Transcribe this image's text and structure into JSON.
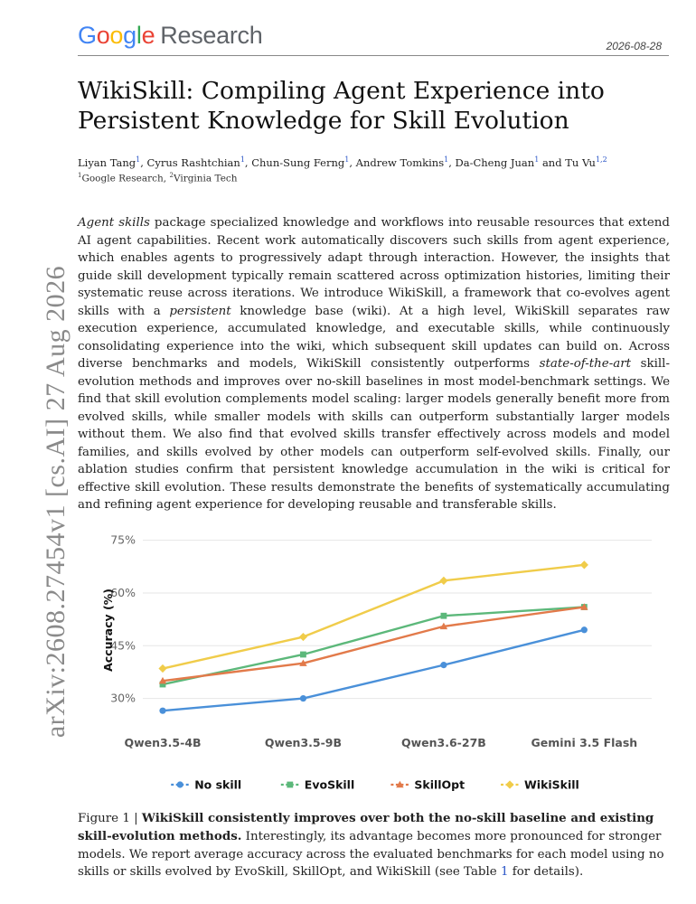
{
  "header": {
    "logo": {
      "brand": "Google",
      "product": "Research"
    },
    "date": "2026-08-28"
  },
  "paper": {
    "title": "WikiSkill: Compiling Agent Experience into Persistent Knowledge for Skill Evolution",
    "authors": [
      {
        "name": "Liyan Tang",
        "sup": "1"
      },
      {
        "name": "Cyrus Rashtchian",
        "sup": "1"
      },
      {
        "name": "Chun-Sung Ferng",
        "sup": "1"
      },
      {
        "name": "Andrew Tomkins",
        "sup": "1"
      },
      {
        "name": "Da-Cheng Juan",
        "sup": "1"
      },
      {
        "name": "Tu Vu",
        "sup": "1,2"
      }
    ],
    "affiliations": [
      {
        "sup": "1",
        "name": "Google Research"
      },
      {
        "sup": "2",
        "name": "Virginia Tech"
      }
    ],
    "abstract": {
      "lead_italic": "Agent skills",
      "part1": " package specialized knowledge and workflows into reusable resources that extend AI agent capabilities.  Recent work automatically discovers such skills from agent experience, which enables agents to progressively adapt through interaction. However, the insights that guide skill development typically remain scattered across optimization histories, limiting their systematic reuse across iterations. We introduce WikiSkill, a framework that co-evolves agent skills with a ",
      "italic2": "persistent",
      "part2": " knowledge base (wiki). At a high level, WikiSkill separates raw execution experience, accumulated knowledge, and executable skills, while continuously consolidating experience into the wiki, which subsequent skill updates can build on. Across diverse benchmarks and models, WikiSkill consistently outperforms ",
      "italic3": "state-of-the-art",
      "part3": " skill-evolution methods and improves over no-skill baselines in most model-benchmark settings. We find that skill evolution complements model scaling: larger models generally benefit more from evolved skills, while smaller models with skills can outperform substantially larger models without them. We also find that evolved skills transfer effectively across models and model families, and skills evolved by other models can outperform self-evolved skills. Finally, our ablation studies confirm that persistent knowledge accumulation in the wiki is critical for effective skill evolution. These results demonstrate the benefits of systematically accumulating and refining agent experience for developing reusable and transferable skills."
    },
    "arxiv_stamp": "arXiv:2608.27454v1  [cs.AI]  27 Aug 2026"
  },
  "chart_data": {
    "type": "line",
    "title": "",
    "xlabel": "",
    "ylabel": "Accuracy (%)",
    "categories": [
      "Qwen3.5-4B",
      "Qwen3.5-9B",
      "Qwen3.6-27B",
      "Gemini 3.5 Flash"
    ],
    "yticks": [
      "30%",
      "45%",
      "60%",
      "75%"
    ],
    "ytick_values": [
      30,
      45,
      60,
      75
    ],
    "ylim": [
      25,
      78
    ],
    "grid": "horizontal",
    "legend_position": "bottom",
    "series": [
      {
        "name": "No skill",
        "color": "#4a90d9",
        "marker": "circle",
        "values": [
          26.5,
          30.0,
          39.5,
          49.5
        ]
      },
      {
        "name": "EvoSkill",
        "color": "#5cb87a",
        "marker": "square",
        "values": [
          34.0,
          42.5,
          53.5,
          56.0
        ]
      },
      {
        "name": "SkillOpt",
        "color": "#e27a4a",
        "marker": "triangle",
        "values": [
          35.0,
          40.0,
          50.5,
          56.0
        ]
      },
      {
        "name": "WikiSkill",
        "color": "#f0cc4a",
        "marker": "diamond",
        "values": [
          38.5,
          47.5,
          63.5,
          68.0
        ]
      }
    ]
  },
  "caption": {
    "label": "Figure 1 | ",
    "bold": "WikiSkill consistently improves over both the no-skill baseline and existing skill-evolution methods.",
    "rest": " Interestingly, its advantage becomes more pronounced for stronger models. We report average accuracy across the evaluated benchmarks for each model using no skills or skills evolved by EvoSkill, SkillOpt, and WikiSkill (see Table ",
    "table_ref": "1",
    "end": " for details)."
  }
}
